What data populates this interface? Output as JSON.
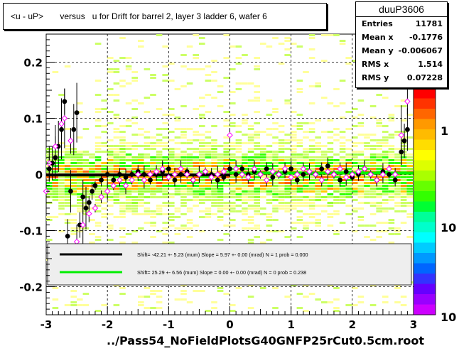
{
  "title": "<u - uP>       versus   u for Drift for barrel 2, layer 3 ladder 6, wafer 6",
  "stats": {
    "name": "duuP3606",
    "rows": [
      {
        "label": "Entries",
        "value": "11781"
      },
      {
        "label": "Mean x",
        "value": "-0.1776"
      },
      {
        "label": "Mean y",
        "value": "-0.006067"
      },
      {
        "label": "RMS x",
        "value": "1.514"
      },
      {
        "label": "RMS y",
        "value": "0.07228"
      }
    ]
  },
  "footer": "../Pass54_NoFieldPlotsG40GNFP25rCut0.5cm.root",
  "chart_data": {
    "type": "scatter",
    "title": "<u - uP>       versus   u for Drift for barrel 2, layer 3 ladder 6, wafer 6",
    "xlabel": "",
    "ylabel": "",
    "xlim": [
      -3,
      3
    ],
    "ylim": [
      -0.25,
      0.25
    ],
    "x_ticks": [
      "-3",
      "-2",
      "-1",
      "0",
      "1",
      "2",
      "3"
    ],
    "y_ticks": [
      "-0.2",
      "-0.1",
      "0",
      "0.1",
      "0.2"
    ],
    "grid": "dashed",
    "color_scale_labels": [
      "1",
      "10",
      "10",
      "10"
    ],
    "series": [
      {
        "marker": "filled-circle",
        "color": "#000000",
        "x": [
          -2.95,
          -2.9,
          -2.85,
          -2.8,
          -2.75,
          -2.7,
          -2.65,
          -2.6,
          -2.55,
          -2.5,
          -2.45,
          -2.4,
          -2.35,
          -2.3,
          -2.25,
          -2.2,
          -2.1,
          -2.0,
          -1.9,
          -1.8,
          -1.7,
          -1.6,
          -1.5,
          -1.4,
          -1.3,
          -1.2,
          -1.1,
          -1.0,
          -0.9,
          -0.8,
          -0.7,
          -0.6,
          -0.5,
          -0.4,
          -0.3,
          -0.2,
          -0.1,
          0.0,
          0.1,
          0.2,
          0.3,
          0.4,
          0.5,
          0.6,
          0.7,
          0.8,
          0.9,
          1.0,
          1.1,
          1.2,
          1.3,
          1.4,
          1.5,
          1.6,
          1.7,
          1.8,
          1.9,
          2.0,
          2.1,
          2.2,
          2.3,
          2.4,
          2.5,
          2.6,
          2.7,
          2.8,
          2.85,
          2.9
        ],
        "y": [
          0.01,
          0.02,
          0.03,
          0.05,
          0.08,
          0.13,
          -0.11,
          -0.03,
          0.08,
          0.11,
          -0.09,
          -0.04,
          -0.06,
          -0.05,
          -0.03,
          -0.02,
          -0.01,
          0.0,
          -0.01,
          0.0,
          -0.005,
          0.0,
          0.005,
          0.0,
          -0.01,
          0.0,
          0.005,
          0.01,
          -0.01,
          0.0,
          0.005,
          -0.01,
          0.0,
          0.005,
          0.0,
          -0.01,
          -0.005,
          0.01,
          0.0,
          0.01,
          0.0,
          0.005,
          0.0,
          0.01,
          -0.005,
          0.0,
          0.005,
          0.01,
          -0.01,
          0.0,
          0.005,
          0.0,
          0.01,
          0.015,
          0.0,
          -0.01,
          0.005,
          -0.005,
          0.0,
          0.01,
          0.0,
          -0.01,
          0.005,
          0.0,
          -0.01,
          0.04,
          0.06,
          0.08
        ]
      },
      {
        "marker": "open-diamond",
        "color": "#ff00ff",
        "x": [
          -3.0,
          -2.95,
          -2.85,
          -2.75,
          -2.7,
          -2.6,
          -2.5,
          -2.4,
          -2.3,
          -2.2,
          -2.1,
          -2.0,
          -1.9,
          -1.8,
          -1.7,
          -1.6,
          -1.5,
          -1.4,
          -1.3,
          -1.2,
          -1.1,
          -1.0,
          -0.9,
          -0.8,
          -0.7,
          -0.6,
          -0.5,
          -0.4,
          -0.3,
          -0.2,
          -0.1,
          0.0,
          0.1,
          0.2,
          0.3,
          0.4,
          0.5,
          0.6,
          0.7,
          0.8,
          0.9,
          1.0,
          1.1,
          1.2,
          1.3,
          1.4,
          1.5,
          1.6,
          1.7,
          1.8,
          1.9,
          2.0,
          2.1,
          2.2,
          2.3,
          2.4,
          2.5,
          2.6,
          2.7,
          2.8,
          2.9
        ],
        "y": [
          -0.03,
          0.02,
          0.05,
          0.09,
          0.1,
          0.06,
          -0.12,
          -0.09,
          -0.07,
          -0.06,
          -0.04,
          -0.03,
          -0.02,
          -0.01,
          -0.02,
          -0.01,
          0.0,
          -0.01,
          0.0,
          0.005,
          0.01,
          -0.005,
          0.0,
          0.01,
          0.0,
          -0.01,
          0.0,
          0.005,
          -0.005,
          0.0,
          0.005,
          0.07,
          0.01,
          0.0,
          -0.005,
          0.01,
          0.0,
          -0.01,
          0.005,
          0.0,
          0.01,
          -0.005,
          0.0,
          0.01,
          0.005,
          0.0,
          -0.01,
          0.005,
          0.0,
          0.01,
          -0.005,
          0.0,
          0.005,
          0.01,
          0.0,
          -0.01,
          0.0,
          0.01,
          0.0,
          0.07,
          0.13
        ]
      }
    ],
    "fits": [
      {
        "label": "Shift=   -42.21 +- 5.23 (mum) Slope =     5.97 +- 0.00 (mrad)  N = 1 prob = 0.000",
        "color": "#000000",
        "x": [
          -3.0,
          0.0
        ],
        "y": [
          -0.001,
          -0.001
        ]
      },
      {
        "label": "Shift=   25.29 +- 6.56 (mum) Slope =     0.00 +- 0.00 (mrad)  N = 0 prob = 0.238",
        "color": "#00ee00",
        "x": [
          0.0,
          3.0
        ],
        "y": [
          0.0025,
          0.0025
        ]
      }
    ]
  }
}
